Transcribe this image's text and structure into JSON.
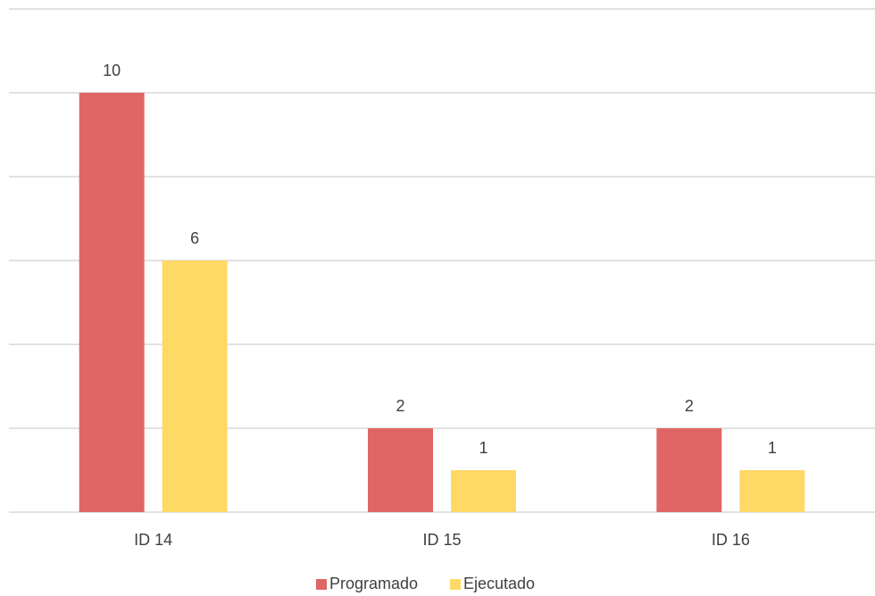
{
  "chart_data": {
    "type": "bar",
    "categories": [
      "ID 14",
      "ID 15",
      "ID 16"
    ],
    "series": [
      {
        "name": "Programado",
        "color": "#e06666",
        "values": [
          10,
          2,
          2
        ]
      },
      {
        "name": "Ejecutado",
        "color": "#ffd966",
        "values": [
          6,
          1,
          1
        ]
      }
    ],
    "ylim": [
      0,
      12
    ],
    "yticks": [
      0,
      2,
      4,
      6,
      8,
      10,
      12
    ],
    "grid": true,
    "legend": "bottom"
  }
}
